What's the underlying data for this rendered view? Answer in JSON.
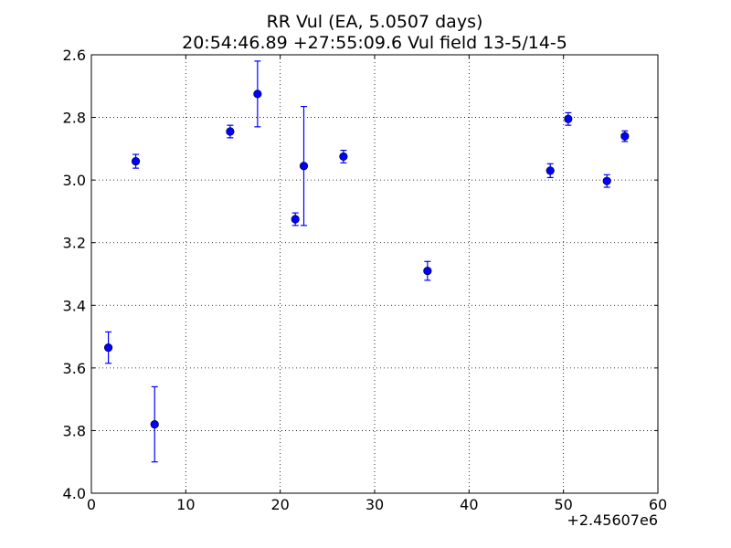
{
  "chart_data": {
    "type": "scatter",
    "title": "RR Vul (EA, 5.0507 days)",
    "subtitle": "20:54:46.89 +27:55:09.6 Vul field 13-5/14-5",
    "xlabel": "",
    "ylabel": "",
    "x_offset_label": "+2.45607e6",
    "xlim": [
      0,
      60
    ],
    "ylim": [
      4.0,
      2.6
    ],
    "y_inverted": true,
    "grid": true,
    "marker_color": "#0000ff",
    "x_ticks": [
      "0",
      "10",
      "20",
      "30",
      "40",
      "50",
      "60"
    ],
    "y_ticks": [
      "2.6",
      "2.8",
      "3.0",
      "3.2",
      "3.4",
      "3.6",
      "3.8",
      "4.0"
    ],
    "points": [
      {
        "x": 1.8,
        "y": 3.535,
        "err": 0.05
      },
      {
        "x": 4.7,
        "y": 2.94,
        "err": 0.022
      },
      {
        "x": 6.7,
        "y": 3.78,
        "err": 0.12
      },
      {
        "x": 14.7,
        "y": 2.845,
        "err": 0.02
      },
      {
        "x": 17.6,
        "y": 2.725,
        "err": 0.105
      },
      {
        "x": 21.6,
        "y": 3.125,
        "err": 0.02
      },
      {
        "x": 22.5,
        "y": 2.955,
        "err": 0.19
      },
      {
        "x": 26.7,
        "y": 2.925,
        "err": 0.02
      },
      {
        "x": 35.6,
        "y": 3.29,
        "err": 0.03
      },
      {
        "x": 48.6,
        "y": 2.97,
        "err": 0.022
      },
      {
        "x": 50.5,
        "y": 2.805,
        "err": 0.02
      },
      {
        "x": 54.6,
        "y": 3.003,
        "err": 0.02
      },
      {
        "x": 56.5,
        "y": 2.86,
        "err": 0.017
      }
    ]
  }
}
